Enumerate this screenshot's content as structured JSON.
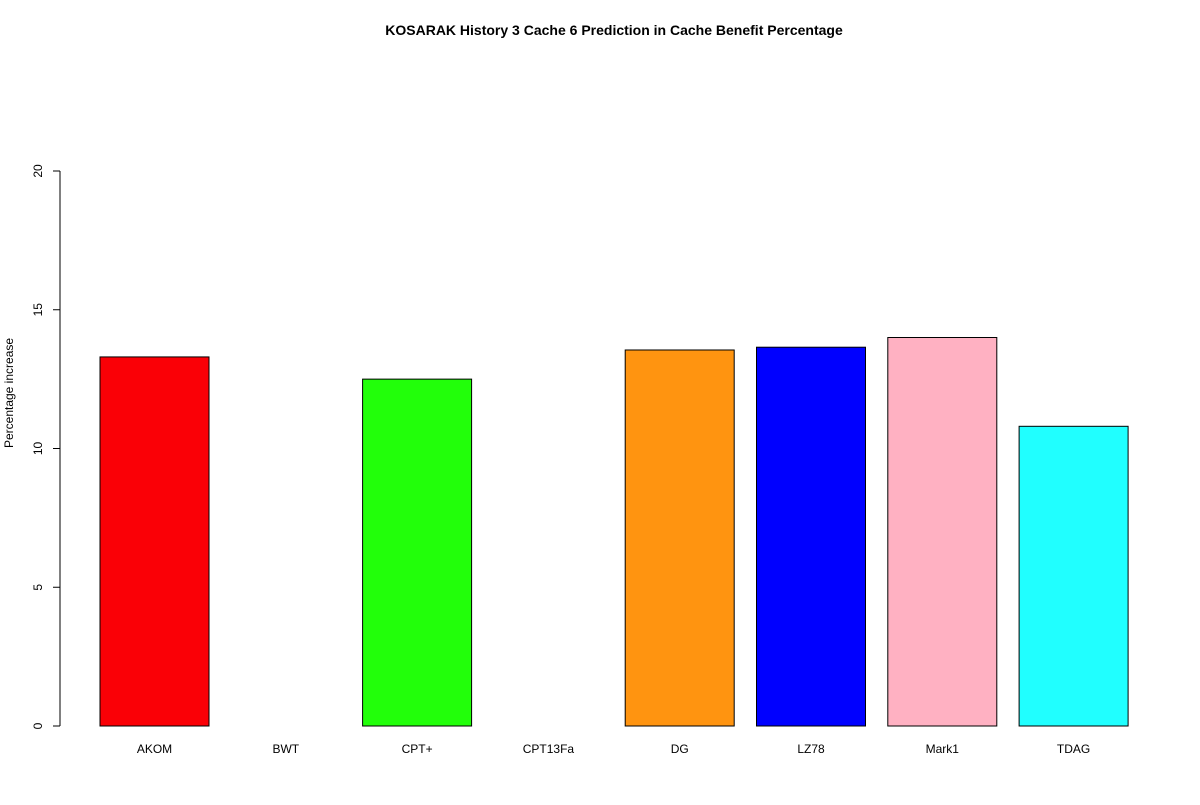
{
  "chart_data": {
    "type": "bar",
    "title": "KOSARAK  History  3  Cache  6 Prediction in Cache Benefit Percentage",
    "xlabel": "",
    "ylabel": "Percentage increase",
    "ylim": [
      0,
      20
    ],
    "yticks": [
      0,
      5,
      10,
      15,
      20
    ],
    "categories": [
      "AKOM",
      "BWT",
      "CPT+",
      "CPT13Fa",
      "DG",
      "LZ78",
      "Mark1",
      "TDAG"
    ],
    "values": [
      13.3,
      0,
      12.5,
      0,
      13.55,
      13.65,
      14.0,
      10.8
    ],
    "colors": [
      "#fa0006",
      "#ffffff",
      "#22ff0a",
      "#ffffff",
      "#ff9410",
      "#0000ff",
      "#ffb1c2",
      "#20ffff"
    ],
    "grid": false,
    "legend": "none"
  }
}
